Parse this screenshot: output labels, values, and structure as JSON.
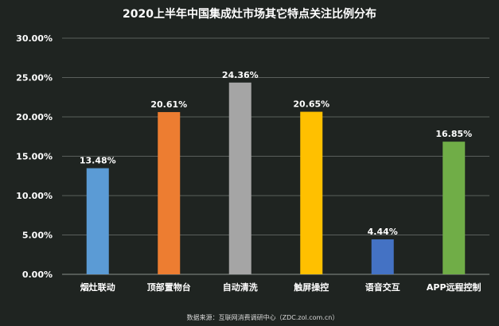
{
  "chart_data": {
    "type": "bar",
    "title": "2020上半年中国集成灶市场其它特点关注比例分布",
    "source": "数据来源：互联网消费调研中心（ZDC.zol.com.cn）",
    "categories": [
      "烟灶联动",
      "顶部置物台",
      "自动清洗",
      "触屏操控",
      "语音交互",
      "APP远程控制"
    ],
    "values": [
      13.48,
      20.61,
      24.36,
      20.65,
      4.44,
      16.85
    ],
    "value_labels": [
      "13.48%",
      "20.61%",
      "24.36%",
      "20.65%",
      "4.44%",
      "16.85%"
    ],
    "colors": [
      "#5b9bd5",
      "#ed7d31",
      "#a5a5a5",
      "#ffc000",
      "#4472c4",
      "#70ad47"
    ],
    "ylim": [
      0,
      30
    ],
    "yticks": [
      0,
      5,
      10,
      15,
      20,
      25,
      30
    ],
    "ytick_labels": [
      "0.00%",
      "5.00%",
      "10.00%",
      "15.00%",
      "20.00%",
      "25.00%",
      "30.00%"
    ],
    "grid": true,
    "legend": "none",
    "background": "#1f2421"
  }
}
